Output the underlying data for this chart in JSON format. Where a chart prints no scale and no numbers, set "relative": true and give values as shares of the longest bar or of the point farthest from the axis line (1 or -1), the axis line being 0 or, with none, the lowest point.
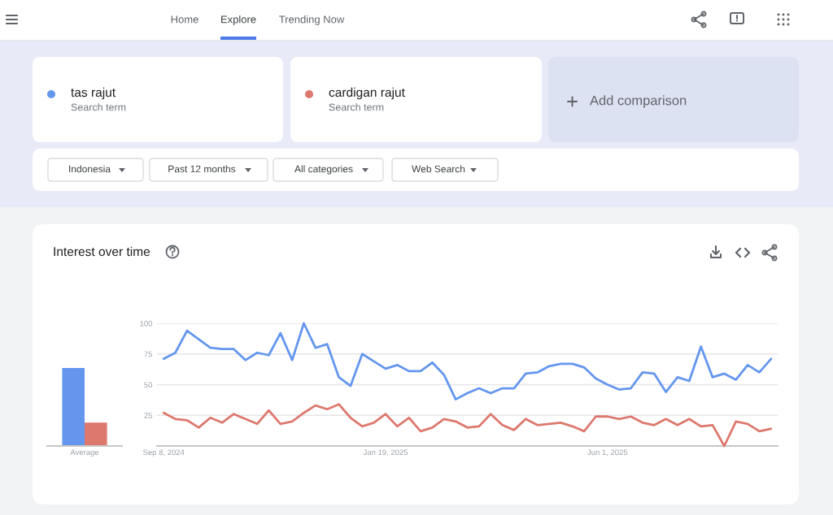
{
  "chart_data": [
    {
      "type": "other",
      "annotations": [
        "Home",
        "Explore",
        "Trending Now",
        "Search term",
        "Search term",
        "Add comparison",
        "Indonesia",
        "Past 12 months",
        "All categories",
        "Web Search"
      ]
    },
    {
      "type": "bar",
      "title": "Interest over time",
      "categories": [
        "Average"
      ],
      "relative": true,
      "series": [
        {
          "color": "#6496ee",
          "values": [
            1
          ]
        },
        {
          "color": "#dd786e",
          "values": [
            0.3
          ]
        }
      ]
    },
    {
      "type": "line",
      "x": [
        "2024-09-08",
        "2024-09-15",
        "2024-09-22",
        "2024-09-29",
        "2024-10-06",
        "2024-10-13",
        "2024-10-20",
        "2024-10-27",
        "2024-11-03",
        "2024-11-10",
        "2024-11-17",
        "2024-11-24",
        "2024-12-01",
        "2024-12-08",
        "2024-12-15",
        "2024-12-22",
        "2024-12-29",
        "2025-01-05",
        "2025-01-12",
        "2025-01-19",
        "2025-01-26",
        "2025-02-02",
        "2025-02-09",
        "2025-02-16",
        "2025-02-23",
        "2025-03-02",
        "2025-03-09",
        "2025-03-16",
        "2025-03-23",
        "2025-03-30",
        "2025-04-06",
        "2025-04-13",
        "2025-04-20",
        "2025-04-27",
        "2025-05-04",
        "2025-05-11",
        "2025-05-18",
        "2025-05-25",
        "2025-06-01",
        "2025-06-08",
        "2025-06-15",
        "2025-06-22",
        "2025-06-29",
        "2025-07-06",
        "2025-07-13",
        "2025-07-20",
        "2025-07-27",
        "2025-08-03",
        "2025-08-10",
        "2025-08-17",
        "2025-08-24",
        "2025-08-31",
        "2025-09-07"
      ],
      "series": [
        {
          "name": "tas rajut",
          "color": "#6496ee",
          "values": [
            71,
            76,
            94,
            87,
            80,
            79,
            79,
            70,
            76,
            74,
            92,
            70,
            100,
            80,
            83,
            56,
            49,
            75,
            69,
            63,
            66,
            61,
            61,
            68,
            58,
            38,
            43,
            47,
            43,
            47,
            47,
            59,
            60,
            65,
            67,
            67,
            64,
            55,
            50,
            46,
            47,
            60,
            59,
            44,
            56,
            53,
            81,
            56,
            59,
            54,
            66,
            60,
            71
          ]
        },
        {
          "name": "cardigan rajut",
          "color": "#dd786e",
          "values": [
            27,
            22,
            21,
            15,
            23,
            19,
            26,
            22,
            18,
            29,
            18,
            20,
            27,
            33,
            30,
            34,
            23,
            16,
            19,
            26,
            16,
            23,
            12,
            15,
            22,
            20,
            15,
            16,
            26,
            17,
            13,
            22,
            17,
            18,
            19,
            16,
            12,
            24,
            24,
            22,
            24,
            19,
            17,
            22,
            17,
            22,
            16,
            17,
            0,
            20,
            18,
            12,
            14
          ]
        }
      ],
      "xlim": [
        "2024-09-04",
        "2025-09-11"
      ],
      "xticks": [
        {
          "value": "2024-09-08",
          "label": "Sep 8, 2024"
        },
        {
          "value": "2025-01-19",
          "label": "Jan 19, 2025"
        },
        {
          "value": "2025-06-01",
          "label": "Jun 1, 2025"
        }
      ],
      "ylim": [
        0,
        100
      ],
      "yticks": [
        25,
        50,
        75,
        100
      ],
      "grid": "y",
      "legend": "top",
      "line_style": "solid"
    }
  ]
}
